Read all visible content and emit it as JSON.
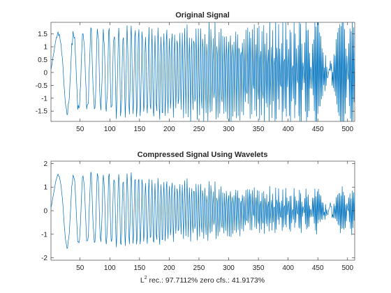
{
  "figure": {
    "background": "#ffffff",
    "line_color": "#0072bd",
    "axis_color": "#262626"
  },
  "chart_data": [
    {
      "type": "line",
      "title": "Original Signal",
      "xlim": [
        1,
        512
      ],
      "ylim": [
        -1.9,
        1.95
      ],
      "xticks": [
        50,
        100,
        150,
        200,
        250,
        300,
        350,
        400,
        450,
        500
      ],
      "yticks": [
        -1.5,
        -1,
        -0.5,
        0,
        0.5,
        1,
        1.5
      ],
      "ytick_labels": [
        "-1.5",
        "-1",
        "-0.5",
        "0",
        "0.5",
        "1",
        "1.5"
      ],
      "series": [
        {
          "generator": "chirp",
          "n": 512,
          "amplitude_start": 1.5,
          "amplitude_end": 2.0,
          "noise_amplitude": 0.35,
          "compressed": false
        }
      ]
    },
    {
      "type": "line",
      "title": "Compressed Signal Using Wavelets",
      "xlim": [
        1,
        512
      ],
      "ylim": [
        -2.1,
        2.1
      ],
      "xticks": [
        50,
        100,
        150,
        200,
        250,
        300,
        350,
        400,
        450,
        500
      ],
      "yticks": [
        -2,
        -1,
        0,
        1,
        2
      ],
      "ytick_labels": [
        "-2",
        "-1",
        "0",
        "1",
        "2"
      ],
      "xlabel": {
        "prefix": "L",
        "superscript": "2",
        "text": " rec.: 97.7112%   zero cfs.: 41.9173%"
      },
      "series": [
        {
          "generator": "chirp",
          "n": 512,
          "amplitude_start": 1.5,
          "amplitude_end": 2.0,
          "noise_amplitude": 0.35,
          "compressed": true
        }
      ]
    }
  ]
}
